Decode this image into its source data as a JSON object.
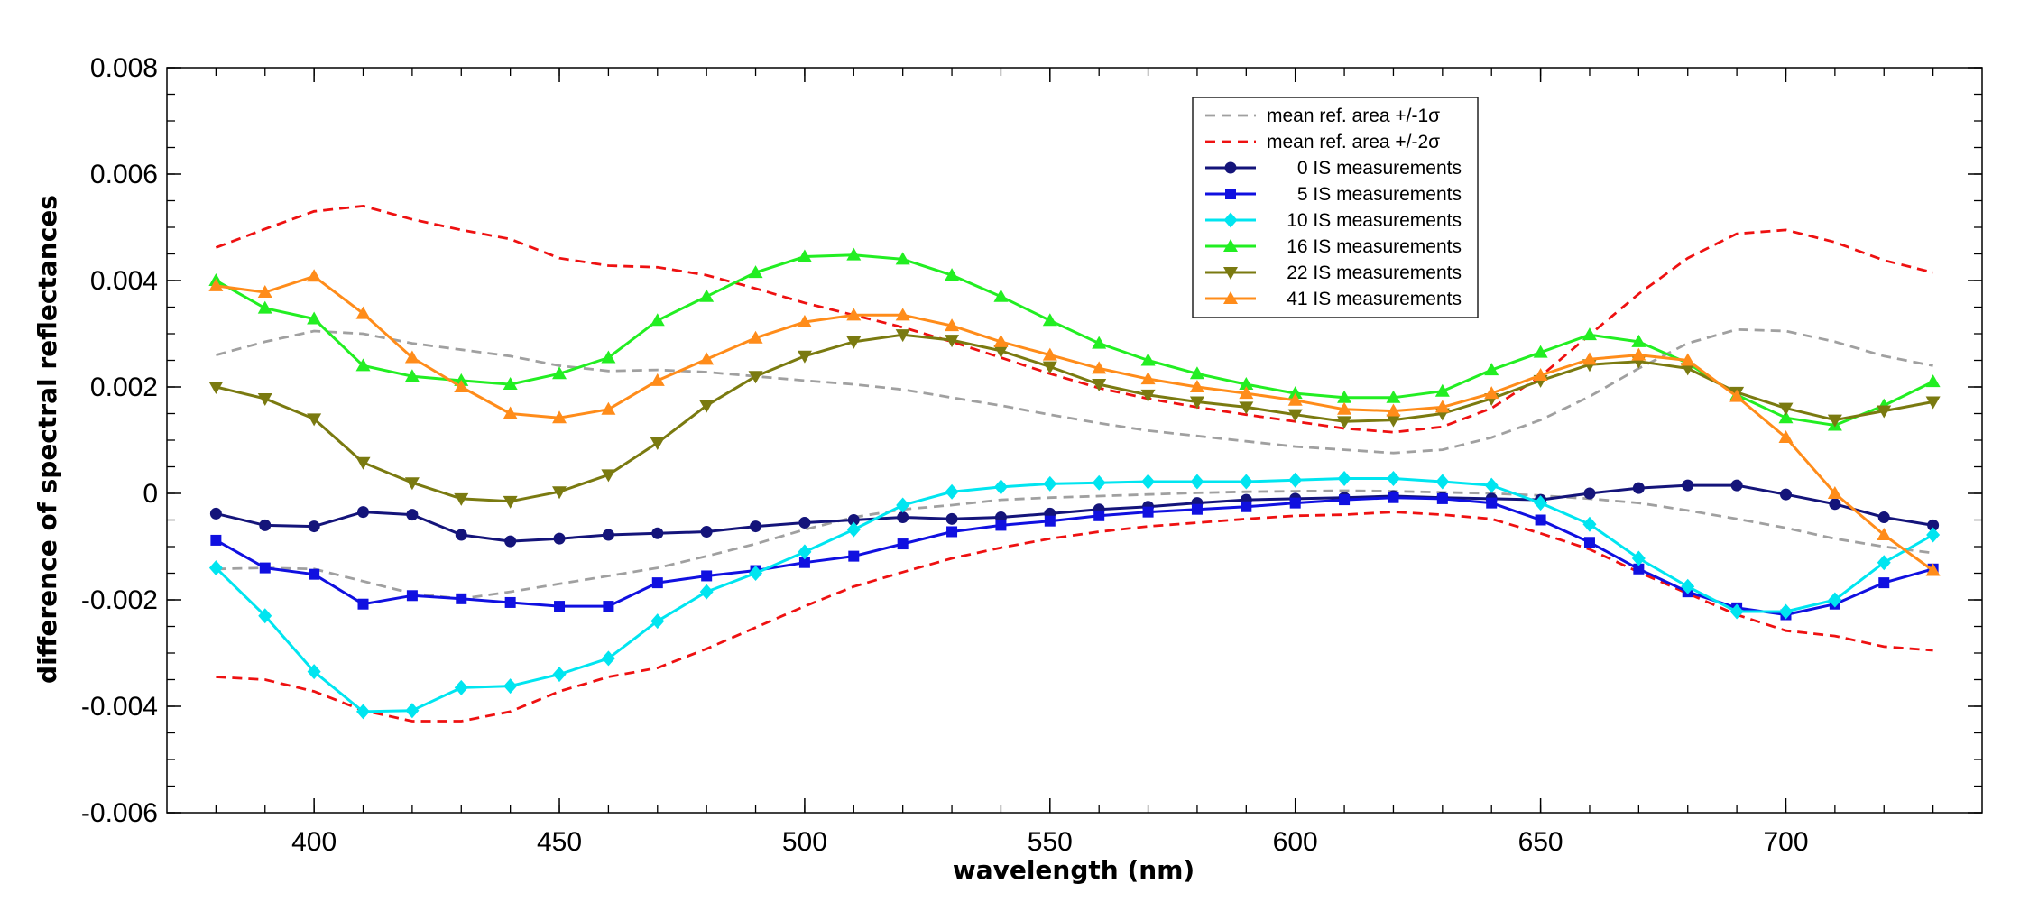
{
  "chart_data": {
    "type": "line",
    "title": "",
    "xlabel": "wavelength (nm)",
    "ylabel": "difference of spectral reflectances",
    "xlim": [
      370,
      740
    ],
    "ylim": [
      -0.006,
      0.008
    ],
    "xticks": [
      400,
      450,
      500,
      550,
      600,
      650,
      700
    ],
    "yticks": [
      -0.006,
      -0.004,
      -0.002,
      0,
      0.002,
      0.004,
      0.006,
      0.008
    ],
    "ytick_labels": [
      "-0.006",
      "-0.004",
      "-0.002",
      "0",
      "0.002",
      "0.004",
      "0.006",
      "0.008"
    ],
    "xtick_labels": [
      "400",
      "450",
      "500",
      "550",
      "600",
      "650",
      "700"
    ],
    "x_minor_step": 10,
    "y_minor_step": 0.0005,
    "grid": false,
    "legend_position": "top-center",
    "x": [
      380,
      390,
      400,
      410,
      420,
      430,
      440,
      450,
      460,
      470,
      480,
      490,
      500,
      510,
      520,
      530,
      540,
      550,
      560,
      570,
      580,
      590,
      600,
      610,
      620,
      630,
      640,
      650,
      660,
      670,
      680,
      690,
      700,
      710,
      720,
      730
    ],
    "bands": [
      {
        "name": "mean ref. area +/-1σ",
        "color": "#a0a0a0",
        "upper": [
          0.0026,
          0.00285,
          0.00305,
          0.003,
          0.00282,
          0.0027,
          0.00258,
          0.0024,
          0.0023,
          0.00232,
          0.00228,
          0.0022,
          0.00212,
          0.00205,
          0.00195,
          0.0018,
          0.00165,
          0.00148,
          0.00132,
          0.00118,
          0.00108,
          0.00098,
          0.00088,
          0.00082,
          0.00076,
          0.00082,
          0.00105,
          0.00138,
          0.00182,
          0.00235,
          0.00282,
          0.00308,
          0.00305,
          0.00285,
          0.00258,
          0.0024
        ],
        "lower": [
          -0.00142,
          -0.0014,
          -0.00142,
          -0.00165,
          -0.00188,
          -0.00198,
          -0.00185,
          -0.0017,
          -0.00155,
          -0.0014,
          -0.00118,
          -0.00095,
          -0.00068,
          -0.00045,
          -0.0003,
          -0.00022,
          -0.00012,
          -8e-05,
          -5e-05,
          -2e-05,
          1e-05,
          3e-05,
          4e-05,
          5e-05,
          4e-05,
          2e-05,
          0,
          -4e-05,
          -0.0001,
          -0.00018,
          -0.00032,
          -0.00048,
          -0.00065,
          -0.00085,
          -0.001,
          -0.00112
        ]
      },
      {
        "name": "mean ref. area +/-2σ",
        "color": "#ee1111",
        "upper": [
          0.00462,
          0.00497,
          0.0053,
          0.0054,
          0.00515,
          0.00495,
          0.00478,
          0.00442,
          0.00428,
          0.00425,
          0.0041,
          0.00385,
          0.00358,
          0.00335,
          0.00312,
          0.00285,
          0.00255,
          0.00225,
          0.00198,
          0.00178,
          0.00162,
          0.00148,
          0.00135,
          0.00122,
          0.00115,
          0.00125,
          0.0016,
          0.0022,
          0.00298,
          0.00375,
          0.00442,
          0.00488,
          0.00495,
          0.00472,
          0.00438,
          0.00415
        ],
        "lower": [
          -0.00345,
          -0.0035,
          -0.00372,
          -0.00408,
          -0.00428,
          -0.00428,
          -0.0041,
          -0.00372,
          -0.00345,
          -0.00328,
          -0.00292,
          -0.00252,
          -0.00212,
          -0.00175,
          -0.00148,
          -0.00122,
          -0.00102,
          -0.00085,
          -0.00072,
          -0.00062,
          -0.00055,
          -0.00048,
          -0.00042,
          -0.0004,
          -0.00035,
          -0.0004,
          -0.00048,
          -0.00075,
          -0.00105,
          -0.00148,
          -0.00188,
          -0.00228,
          -0.00258,
          -0.00268,
          -0.00288,
          -0.00295
        ]
      }
    ],
    "series": [
      {
        "name": "0 IS measurements",
        "color": "#14147a",
        "marker": "circle",
        "values": [
          -0.00038,
          -0.0006,
          -0.00062,
          -0.00035,
          -0.0004,
          -0.00078,
          -0.0009,
          -0.00085,
          -0.00078,
          -0.00075,
          -0.00072,
          -0.00062,
          -0.00055,
          -0.0005,
          -0.00045,
          -0.00048,
          -0.00045,
          -0.00038,
          -0.0003,
          -0.00025,
          -0.00018,
          -0.00012,
          -0.0001,
          -8e-05,
          -5e-05,
          -8e-05,
          -0.0001,
          -0.00012,
          0,
          0.0001,
          0.00015,
          0.00015,
          -2e-05,
          -0.0002,
          -0.00045,
          -0.0006
        ]
      },
      {
        "name": "5 IS measurements",
        "color": "#1010e0",
        "marker": "square",
        "values": [
          -0.00088,
          -0.0014,
          -0.00152,
          -0.00208,
          -0.00192,
          -0.00198,
          -0.00205,
          -0.00212,
          -0.00212,
          -0.00168,
          -0.00155,
          -0.00145,
          -0.0013,
          -0.00118,
          -0.00095,
          -0.00072,
          -0.0006,
          -0.00052,
          -0.00042,
          -0.00035,
          -0.0003,
          -0.00025,
          -0.00018,
          -0.00012,
          -8e-05,
          -0.0001,
          -0.00018,
          -0.0005,
          -0.00092,
          -0.00142,
          -0.00185,
          -0.00215,
          -0.00228,
          -0.00208,
          -0.00168,
          -0.00142
        ]
      },
      {
        "name": "10 IS measurements",
        "color": "#00e5f0",
        "marker": "diamond",
        "values": [
          -0.0014,
          -0.0023,
          -0.00335,
          -0.0041,
          -0.00408,
          -0.00365,
          -0.00362,
          -0.0034,
          -0.0031,
          -0.0024,
          -0.00185,
          -0.0015,
          -0.0011,
          -0.00068,
          -0.00022,
          3e-05,
          0.00012,
          0.00018,
          0.0002,
          0.00022,
          0.00022,
          0.00022,
          0.00025,
          0.00028,
          0.00028,
          0.00022,
          0.00015,
          -0.00018,
          -0.00058,
          -0.00122,
          -0.00175,
          -0.00222,
          -0.00222,
          -0.002,
          -0.0013,
          -0.00078
        ]
      },
      {
        "name": "16 IS measurements",
        "color": "#22ee22",
        "marker": "triangle-up",
        "values": [
          0.004,
          0.00348,
          0.00328,
          0.0024,
          0.0022,
          0.00212,
          0.00205,
          0.00225,
          0.00255,
          0.00325,
          0.0037,
          0.00415,
          0.00445,
          0.00448,
          0.0044,
          0.0041,
          0.0037,
          0.00325,
          0.00282,
          0.0025,
          0.00225,
          0.00205,
          0.00188,
          0.0018,
          0.0018,
          0.00192,
          0.00232,
          0.00265,
          0.00298,
          0.00285,
          0.00245,
          0.00185,
          0.00142,
          0.00128,
          0.00165,
          0.0021
        ]
      },
      {
        "name": "22 IS measurements",
        "color": "#7a7a10",
        "marker": "triangle-down",
        "values": [
          0.002,
          0.00178,
          0.0014,
          0.00058,
          0.0002,
          -0.0001,
          -0.00015,
          3e-05,
          0.00035,
          0.00095,
          0.00165,
          0.0022,
          0.00258,
          0.00285,
          0.00298,
          0.00288,
          0.00268,
          0.00238,
          0.00205,
          0.00185,
          0.00172,
          0.00162,
          0.00148,
          0.00135,
          0.00138,
          0.0015,
          0.00178,
          0.00212,
          0.00242,
          0.00248,
          0.00235,
          0.0019,
          0.0016,
          0.00138,
          0.00155,
          0.00172
        ]
      },
      {
        "name": "41 IS measurements",
        "color": "#ff8c1a",
        "marker": "triangle-up",
        "values": [
          0.0039,
          0.00378,
          0.00408,
          0.00338,
          0.00255,
          0.002,
          0.0015,
          0.00142,
          0.00158,
          0.00212,
          0.00252,
          0.00292,
          0.00322,
          0.00335,
          0.00335,
          0.00315,
          0.00285,
          0.0026,
          0.00235,
          0.00215,
          0.002,
          0.00188,
          0.00175,
          0.00158,
          0.00155,
          0.00162,
          0.00188,
          0.00222,
          0.00252,
          0.0026,
          0.0025,
          0.00182,
          0.00105,
          0,
          -0.00078,
          -0.00145
        ]
      }
    ]
  }
}
